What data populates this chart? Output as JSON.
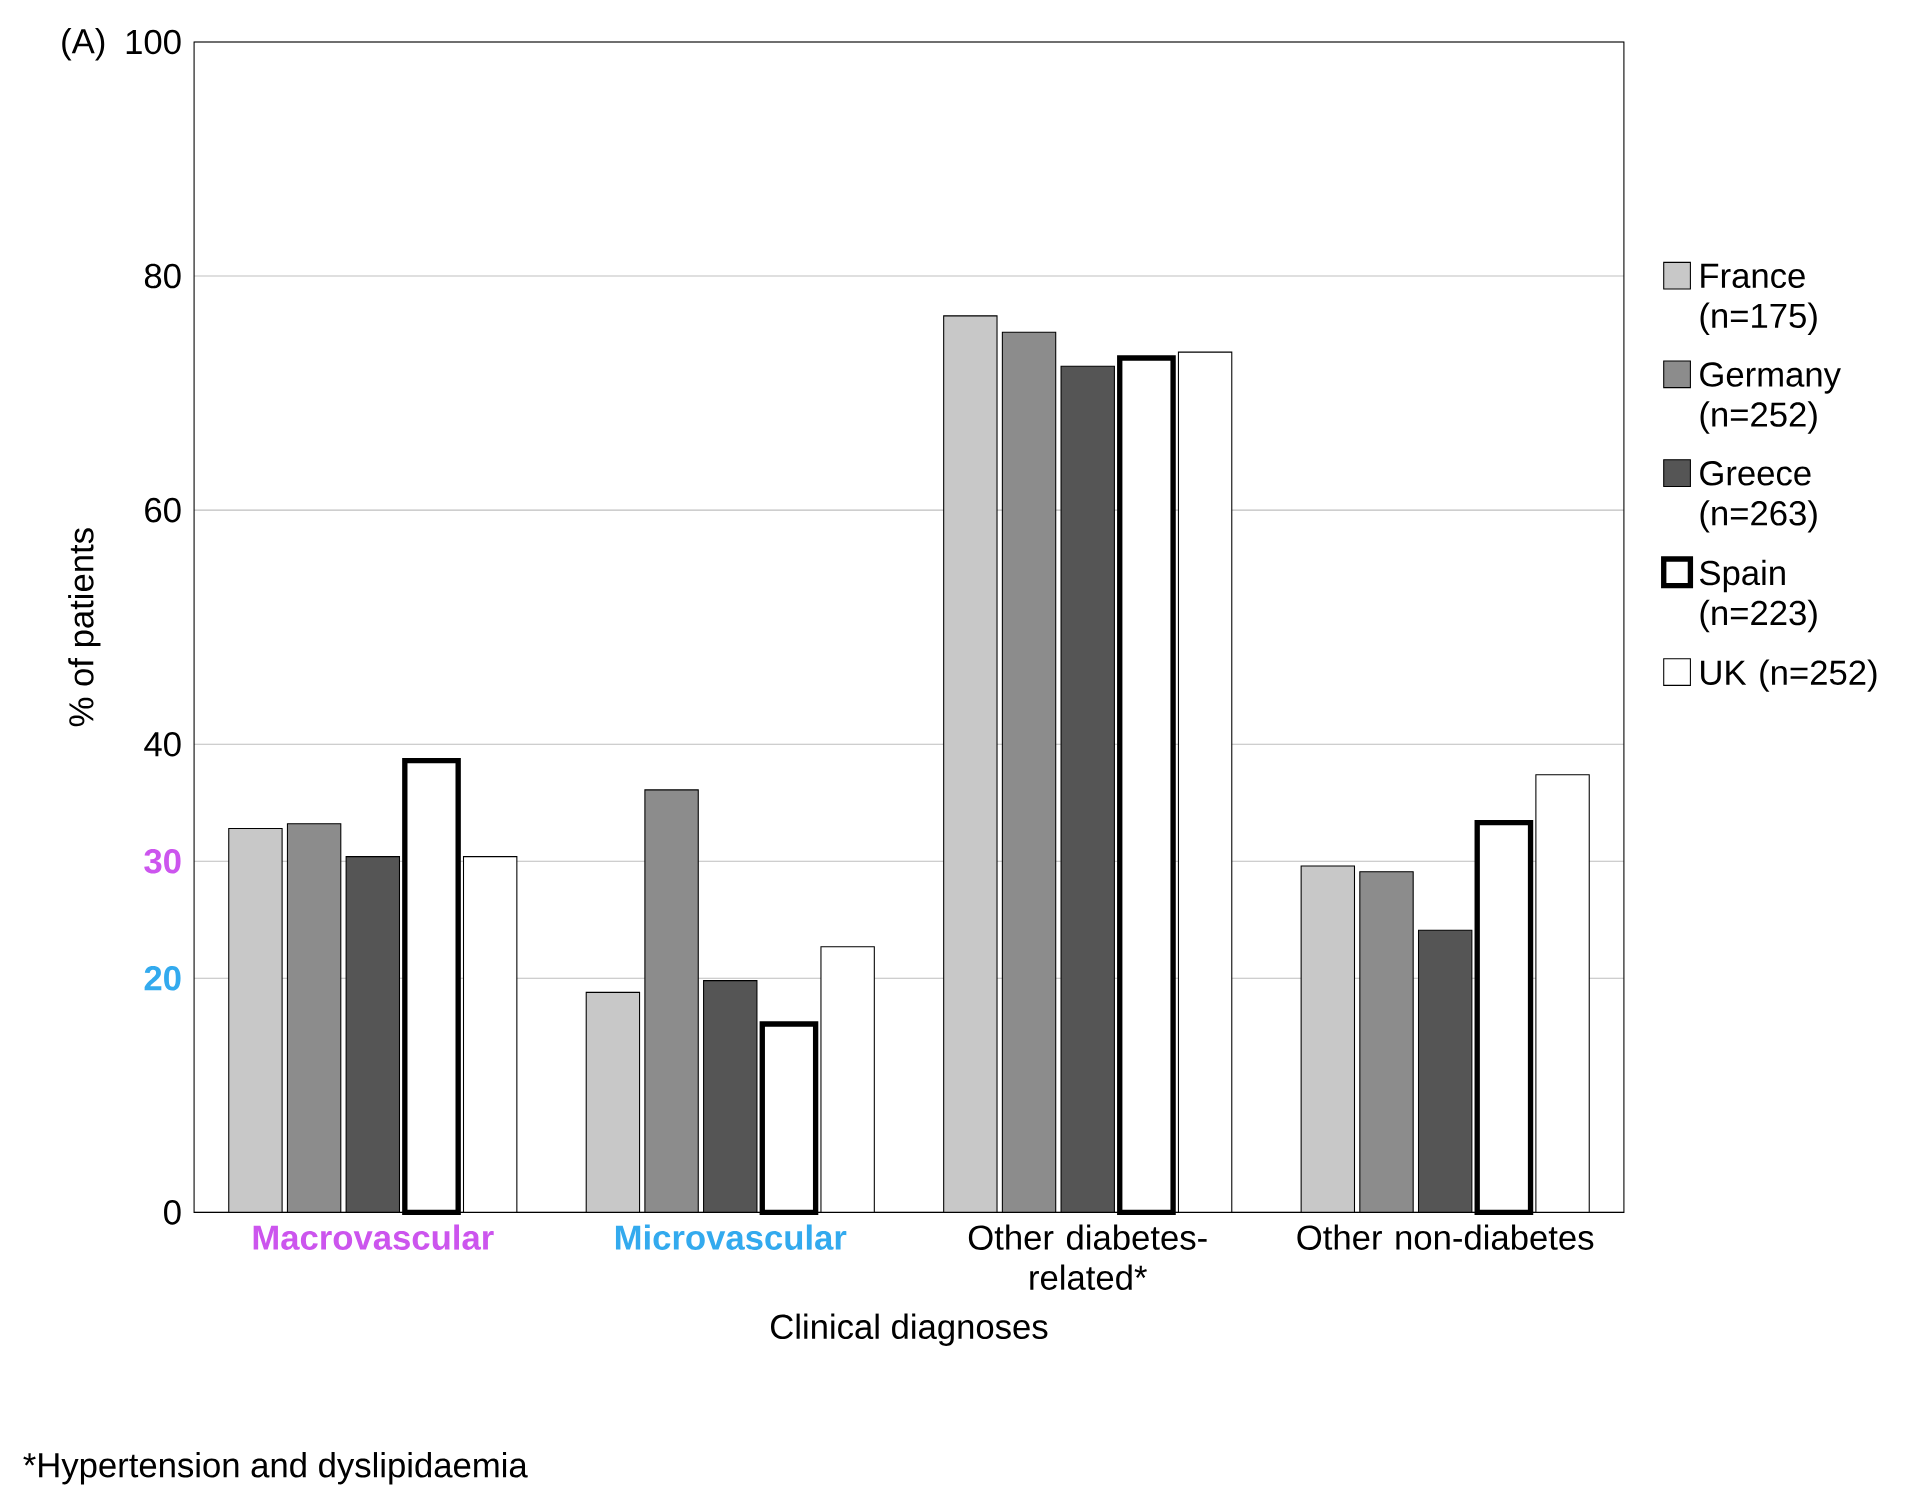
{
  "chart_data": {
    "type": "bar",
    "xlabel": "Clinical diagnoses",
    "ylabel": "% of patients",
    "categories": [
      "Macrovascular",
      "Microvascular",
      "Other diabetes-related*",
      "Other non-diabetes"
    ],
    "series": [
      {
        "name": "France (n=175)",
        "color": "#c8c8c8",
        "values": [
          32.8,
          18.8,
          76.6,
          29.6
        ]
      },
      {
        "name": "Germany (n=252)",
        "color": "#8c8c8c",
        "values": [
          33.2,
          36.1,
          75.2,
          29.1
        ]
      },
      {
        "name": "Greece (n=263)",
        "color": "#555555",
        "values": [
          30.4,
          19.8,
          72.3,
          24.1
        ]
      },
      {
        "name": "Spain (n=223)",
        "color": "#ffffff",
        "values": [
          38.6,
          16.1,
          73.0,
          33.3
        ]
      },
      {
        "name": "UK (n=252)",
        "color": "#ffffff",
        "values": [
          30.4,
          22.7,
          73.5,
          37.4
        ]
      }
    ],
    "ylim": [
      0,
      100
    ],
    "yticks": [
      0,
      20,
      30,
      40,
      60,
      80,
      100
    ],
    "grid": "y",
    "legend": "right",
    "annotations": [
      "(A)",
      "*Hypertension and dyslipidaemia"
    ]
  }
}
